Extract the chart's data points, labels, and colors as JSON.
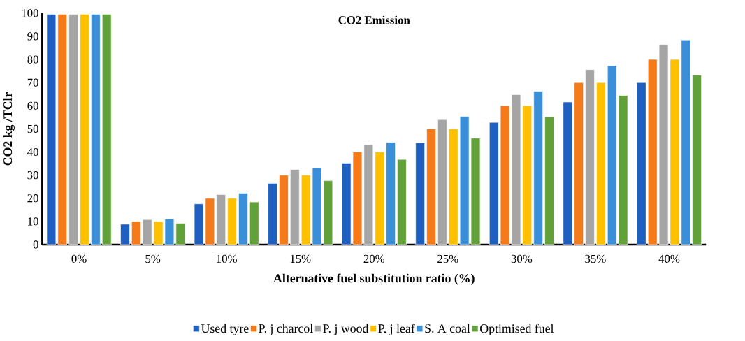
{
  "chart_data": {
    "type": "bar",
    "title": "CO2 Emission",
    "xlabel": "Alternative fuel substitution ratio (%)",
    "ylabel": "CO2 kg /TClr",
    "categories": [
      "0%",
      "5%",
      "10%",
      "15%",
      "20%",
      "25%",
      "30%",
      "35%",
      "40%"
    ],
    "series": [
      {
        "name": "Used tyre",
        "color": "#1f5fc0",
        "values": [
          99.5,
          8.8,
          17.6,
          26.4,
          35.2,
          44,
          52.8,
          61.6,
          70
        ]
      },
      {
        "name": "P. j charcol",
        "color": "#f57a1a",
        "values": [
          99.5,
          10,
          20,
          30,
          40,
          50,
          60,
          70,
          80
        ]
      },
      {
        "name": "P. j wood",
        "color": "#a5a5a5",
        "values": [
          99.5,
          10.8,
          21.6,
          32.4,
          43.2,
          54,
          64.8,
          75.6,
          86.4
        ]
      },
      {
        "name": "P. j leaf",
        "color": "#ffc000",
        "values": [
          99.5,
          10,
          20,
          30,
          40,
          50,
          60,
          70,
          80
        ]
      },
      {
        "name": "S. A coal",
        "color": "#3a8fd8",
        "values": [
          99.5,
          11.1,
          22.2,
          33.2,
          44.2,
          55.3,
          66.2,
          77.3,
          88.4
        ]
      },
      {
        "name": "Optimised fuel",
        "color": "#62a03a",
        "values": [
          99.5,
          9.2,
          18.4,
          27.6,
          36.8,
          46,
          55.2,
          64.4,
          73.2
        ]
      }
    ],
    "ylim": [
      0,
      100
    ],
    "yticks": [
      0,
      10,
      20,
      30,
      40,
      50,
      60,
      70,
      80,
      90,
      100
    ],
    "legend": "bottom"
  }
}
